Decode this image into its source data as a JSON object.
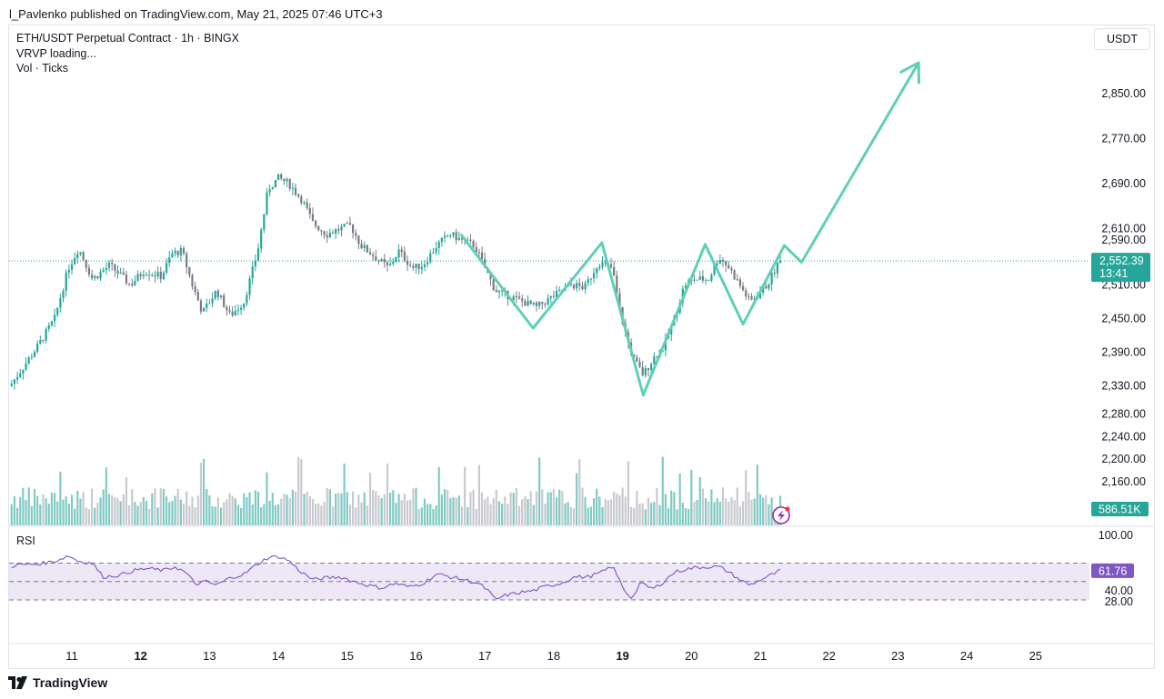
{
  "header": {
    "published": "l_Pavlenko published on TradingView.com, May 21, 2025 07:46 UTC+3"
  },
  "legend": {
    "title": "ETH/USDT Perpetual Contract · 1h · BINGX",
    "vrvp": "VRVP loading...",
    "vol": "Vol · Ticks"
  },
  "currency_button": "USDT",
  "footer": {
    "brand": "TradingView"
  },
  "colors": {
    "up": "#26a69a",
    "down": "#787b86",
    "vol_up": "#80cbc4",
    "vol_down": "#c8cacf",
    "drawing": "#5fcfb8",
    "rsi": "#7e57c2",
    "rsi_band": "#ede7f6",
    "price_tag": "#26a69a",
    "rsi_tag": "#7e57c2"
  },
  "chart_data": [
    {
      "type": "candlestick",
      "title": "ETH/USDT Perpetual Contract · 1h · BINGX",
      "timeframe": "1h",
      "x_ticks": [
        {
          "label": "11",
          "day": 11,
          "bold": false
        },
        {
          "label": "12",
          "day": 12,
          "bold": true
        },
        {
          "label": "13",
          "day": 13,
          "bold": false
        },
        {
          "label": "14",
          "day": 14,
          "bold": false
        },
        {
          "label": "15",
          "day": 15,
          "bold": false
        },
        {
          "label": "16",
          "day": 16,
          "bold": false
        },
        {
          "label": "17",
          "day": 17,
          "bold": false
        },
        {
          "label": "18",
          "day": 18,
          "bold": false
        },
        {
          "label": "19",
          "day": 19,
          "bold": true
        },
        {
          "label": "20",
          "day": 20,
          "bold": false
        },
        {
          "label": "21",
          "day": 21,
          "bold": false
        },
        {
          "label": "22",
          "day": 22,
          "bold": false
        },
        {
          "label": "23",
          "day": 23,
          "bold": false
        },
        {
          "label": "24",
          "day": 24,
          "bold": false
        },
        {
          "label": "25",
          "day": 25,
          "bold": false
        }
      ],
      "y_ticks": [
        "2,850.00",
        "2,770.00",
        "2,690.00",
        "2,610.00",
        "2,590.00",
        "2,510.00",
        "2,450.00",
        "2,390.00",
        "2,330.00",
        "2,280.00",
        "2,240.00",
        "2,200.00",
        "2,160.00"
      ],
      "y_tick_values": [
        2850,
        2770,
        2690,
        2610,
        2590,
        2510,
        2450,
        2390,
        2330,
        2280,
        2240,
        2200,
        2160
      ],
      "close_series_anchors": [
        [
          10.1,
          2330
        ],
        [
          10.3,
          2365
        ],
        [
          10.5,
          2400
        ],
        [
          10.75,
          2450
        ],
        [
          10.95,
          2540
        ],
        [
          11.1,
          2575
        ],
        [
          11.3,
          2520
        ],
        [
          11.55,
          2545
        ],
        [
          11.85,
          2510
        ],
        [
          12.05,
          2535
        ],
        [
          12.3,
          2525
        ],
        [
          12.45,
          2565
        ],
        [
          12.6,
          2570
        ],
        [
          12.75,
          2510
        ],
        [
          12.9,
          2460
        ],
        [
          13.1,
          2500
        ],
        [
          13.3,
          2455
        ],
        [
          13.5,
          2480
        ],
        [
          13.7,
          2570
        ],
        [
          13.85,
          2680
        ],
        [
          14.0,
          2700
        ],
        [
          14.15,
          2690
        ],
        [
          14.35,
          2660
        ],
        [
          14.5,
          2620
        ],
        [
          14.7,
          2600
        ],
        [
          14.9,
          2610
        ],
        [
          15.05,
          2615
        ],
        [
          15.2,
          2580
        ],
        [
          15.4,
          2560
        ],
        [
          15.6,
          2540
        ],
        [
          15.75,
          2570
        ],
        [
          15.95,
          2540
        ],
        [
          16.1,
          2545
        ],
        [
          16.3,
          2580
        ],
        [
          16.5,
          2600
        ],
        [
          16.65,
          2590
        ],
        [
          16.85,
          2580
        ],
        [
          17.0,
          2540
        ],
        [
          17.15,
          2500
        ],
        [
          17.35,
          2490
        ],
        [
          17.55,
          2480
        ],
        [
          17.75,
          2470
        ],
        [
          18.0,
          2490
        ],
        [
          18.25,
          2510
        ],
        [
          18.45,
          2505
        ],
        [
          18.65,
          2550
        ],
        [
          18.85,
          2540
        ],
        [
          18.95,
          2470
        ],
        [
          19.05,
          2420
        ],
        [
          19.15,
          2380
        ],
        [
          19.3,
          2350
        ],
        [
          19.45,
          2380
        ],
        [
          19.6,
          2400
        ],
        [
          19.75,
          2450
        ],
        [
          19.9,
          2510
        ],
        [
          20.05,
          2520
        ],
        [
          20.25,
          2520
        ],
        [
          20.4,
          2560
        ],
        [
          20.55,
          2540
        ],
        [
          20.7,
          2510
        ],
        [
          20.85,
          2480
        ],
        [
          20.95,
          2490
        ],
        [
          21.1,
          2510
        ],
        [
          21.25,
          2545
        ],
        [
          21.3,
          2552
        ]
      ],
      "last_price": "2,552.39",
      "countdown": "13:41",
      "volume_last": "586.51K"
    },
    {
      "type": "line",
      "title": "RSI",
      "y_ticks": [
        "100.00",
        "61.76",
        "40.00",
        "28.00"
      ],
      "y_tick_values": [
        100,
        61.76,
        40,
        28
      ],
      "band": [
        30,
        70
      ],
      "midline": 50,
      "last_value": "61.76",
      "anchors": [
        [
          10.0,
          64
        ],
        [
          10.2,
          68
        ],
        [
          10.5,
          69
        ],
        [
          10.75,
          72
        ],
        [
          10.95,
          78
        ],
        [
          11.1,
          72
        ],
        [
          11.3,
          70
        ],
        [
          11.45,
          55
        ],
        [
          11.7,
          57
        ],
        [
          11.9,
          62
        ],
        [
          12.1,
          64
        ],
        [
          12.35,
          62
        ],
        [
          12.5,
          66
        ],
        [
          12.65,
          60
        ],
        [
          12.8,
          47
        ],
        [
          12.95,
          50
        ],
        [
          13.1,
          46
        ],
        [
          13.3,
          54
        ],
        [
          13.5,
          58
        ],
        [
          13.7,
          69
        ],
        [
          13.85,
          76
        ],
        [
          14.0,
          77
        ],
        [
          14.15,
          73
        ],
        [
          14.3,
          62
        ],
        [
          14.5,
          52
        ],
        [
          14.7,
          54
        ],
        [
          14.9,
          55
        ],
        [
          15.1,
          50
        ],
        [
          15.3,
          46
        ],
        [
          15.5,
          43
        ],
        [
          15.7,
          48
        ],
        [
          15.9,
          44
        ],
        [
          16.1,
          48
        ],
        [
          16.3,
          58
        ],
        [
          16.5,
          55
        ],
        [
          16.7,
          52
        ],
        [
          16.9,
          48
        ],
        [
          17.05,
          40
        ],
        [
          17.15,
          30
        ],
        [
          17.3,
          35
        ],
        [
          17.5,
          38
        ],
        [
          17.7,
          40
        ],
        [
          17.9,
          45
        ],
        [
          18.1,
          48
        ],
        [
          18.3,
          55
        ],
        [
          18.5,
          55
        ],
        [
          18.7,
          60
        ],
        [
          18.85,
          67
        ],
        [
          18.95,
          52
        ],
        [
          19.05,
          38
        ],
        [
          19.15,
          32
        ],
        [
          19.25,
          48
        ],
        [
          19.45,
          42
        ],
        [
          19.6,
          50
        ],
        [
          19.75,
          60
        ],
        [
          19.9,
          63
        ],
        [
          20.05,
          65
        ],
        [
          20.25,
          66
        ],
        [
          20.4,
          66
        ],
        [
          20.55,
          60
        ],
        [
          20.7,
          52
        ],
        [
          20.85,
          46
        ],
        [
          20.95,
          50
        ],
        [
          21.1,
          55
        ],
        [
          21.3,
          62
        ]
      ]
    }
  ],
  "drawing": {
    "type": "polyline-arrow",
    "points_price": [
      [
        16.65,
        2600
      ],
      [
        17.7,
        2433
      ],
      [
        18.7,
        2585
      ],
      [
        19.3,
        2314
      ],
      [
        20.2,
        2582
      ],
      [
        20.75,
        2440
      ],
      [
        21.35,
        2580
      ],
      [
        21.6,
        2550
      ],
      [
        23.3,
        2905
      ]
    ]
  }
}
